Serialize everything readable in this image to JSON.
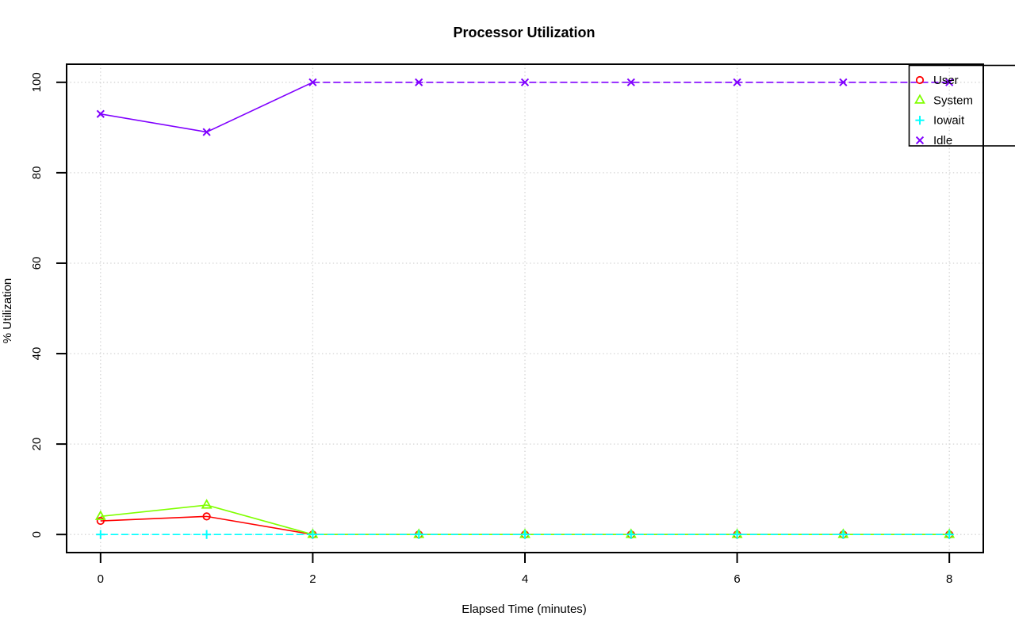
{
  "chart_data": {
    "type": "line",
    "title": "Processor Utilization",
    "xlabel": "Elapsed Time (minutes)",
    "ylabel": "% Utilization",
    "x": [
      0,
      1,
      2,
      3,
      4,
      5,
      6,
      7,
      8
    ],
    "xticks": [
      0,
      2,
      4,
      6,
      8
    ],
    "yticks": [
      0,
      20,
      40,
      60,
      80,
      100
    ],
    "xlim": [
      -0.32,
      8.32
    ],
    "ylim": [
      -4,
      104
    ],
    "grid": true,
    "grid_color": "#d3d3d3",
    "axis_color": "#000000",
    "legend_position": "top-right",
    "legend": [
      "User",
      "System",
      "Iowait",
      "Idle"
    ],
    "series": [
      {
        "name": "User",
        "color": "#ff0000",
        "marker": "circle",
        "line": "solid",
        "values": [
          3,
          4,
          0,
          0,
          0,
          0,
          0,
          0,
          0
        ]
      },
      {
        "name": "System",
        "color": "#80ff00",
        "marker": "triangle",
        "line": "solid",
        "values": [
          4,
          6.5,
          0,
          0,
          0,
          0,
          0,
          0,
          0
        ]
      },
      {
        "name": "Iowait",
        "color": "#00ffff",
        "marker": "plus",
        "line": "dashed",
        "values": [
          0,
          0,
          0,
          0,
          0,
          0,
          0,
          0,
          0
        ]
      },
      {
        "name": "Idle",
        "color": "#8000ff",
        "marker": "x",
        "line": "solid",
        "dashed_from_index": 2,
        "values": [
          93,
          89,
          100,
          100,
          100,
          100,
          100,
          100,
          100
        ]
      }
    ]
  }
}
